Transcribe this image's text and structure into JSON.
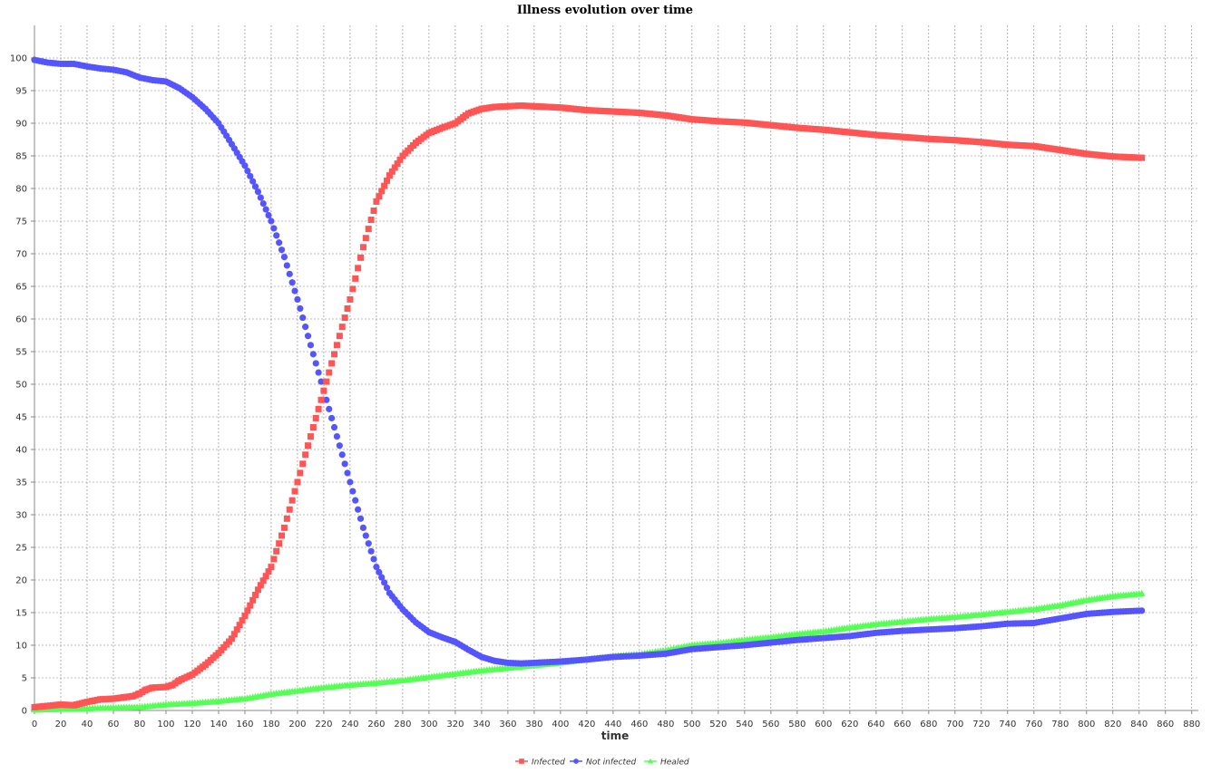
{
  "chart_data": {
    "type": "scatter",
    "title": "Illness evolution over time",
    "xlabel": "time",
    "ylabel": "",
    "xlim": [
      0,
      885
    ],
    "ylim": [
      0,
      105
    ],
    "x_ticks": [
      0,
      20,
      40,
      60,
      80,
      100,
      120,
      140,
      160,
      180,
      200,
      220,
      240,
      260,
      280,
      300,
      320,
      340,
      360,
      380,
      400,
      420,
      440,
      460,
      480,
      500,
      520,
      540,
      560,
      580,
      600,
      620,
      640,
      660,
      680,
      700,
      720,
      740,
      760,
      780,
      800,
      820,
      840,
      860,
      880
    ],
    "y_ticks": [
      0,
      5,
      10,
      15,
      20,
      25,
      30,
      35,
      40,
      45,
      50,
      55,
      60,
      65,
      70,
      75,
      80,
      85,
      90,
      95,
      100
    ],
    "grid": true,
    "legend_position": "bottom",
    "series": [
      {
        "name": "Infected",
        "color": "#ff5555",
        "marker": "square",
        "points": [
          [
            0,
            0.5
          ],
          [
            20,
            0.9
          ],
          [
            30,
            0.8
          ],
          [
            40,
            1.3
          ],
          [
            50,
            1.7
          ],
          [
            60,
            1.8
          ],
          [
            75,
            2.2
          ],
          [
            80,
            2.6
          ],
          [
            85,
            3.2
          ],
          [
            90,
            3.5
          ],
          [
            100,
            3.6
          ],
          [
            105,
            3.9
          ],
          [
            110,
            4.6
          ],
          [
            120,
            5.5
          ],
          [
            130,
            7
          ],
          [
            140,
            8.8
          ],
          [
            150,
            11
          ],
          [
            160,
            14.5
          ],
          [
            170,
            18.5
          ],
          [
            180,
            22
          ],
          [
            190,
            28
          ],
          [
            200,
            35
          ],
          [
            210,
            42
          ],
          [
            220,
            49
          ],
          [
            230,
            56
          ],
          [
            240,
            63
          ],
          [
            250,
            71
          ],
          [
            260,
            78
          ],
          [
            270,
            82
          ],
          [
            280,
            85
          ],
          [
            290,
            87
          ],
          [
            300,
            88.5
          ],
          [
            310,
            89.3
          ],
          [
            320,
            90
          ],
          [
            330,
            91.5
          ],
          [
            340,
            92.2
          ],
          [
            350,
            92.5
          ],
          [
            360,
            92.6
          ],
          [
            370,
            92.7
          ],
          [
            380,
            92.6
          ],
          [
            400,
            92.4
          ],
          [
            420,
            92
          ],
          [
            440,
            91.8
          ],
          [
            460,
            91.6
          ],
          [
            480,
            91.2
          ],
          [
            500,
            90.6
          ],
          [
            520,
            90.3
          ],
          [
            540,
            90.1
          ],
          [
            560,
            89.7
          ],
          [
            580,
            89.3
          ],
          [
            600,
            89
          ],
          [
            620,
            88.6
          ],
          [
            640,
            88.2
          ],
          [
            660,
            87.9
          ],
          [
            680,
            87.6
          ],
          [
            700,
            87.4
          ],
          [
            720,
            87.1
          ],
          [
            740,
            86.7
          ],
          [
            760,
            86.5
          ],
          [
            780,
            85.9
          ],
          [
            800,
            85.3
          ],
          [
            820,
            84.9
          ],
          [
            842,
            84.7
          ]
        ]
      },
      {
        "name": "Not infected",
        "color": "#5555ff",
        "marker": "circle",
        "points": [
          [
            0,
            99.7
          ],
          [
            10,
            99.3
          ],
          [
            20,
            99.1
          ],
          [
            30,
            99.1
          ],
          [
            40,
            98.7
          ],
          [
            50,
            98.4
          ],
          [
            60,
            98.2
          ],
          [
            70,
            97.8
          ],
          [
            80,
            97
          ],
          [
            90,
            96.6
          ],
          [
            100,
            96.4
          ],
          [
            110,
            95.4
          ],
          [
            120,
            94
          ],
          [
            130,
            92.2
          ],
          [
            140,
            90
          ],
          [
            150,
            86.8
          ],
          [
            160,
            83.5
          ],
          [
            170,
            79.5
          ],
          [
            180,
            75
          ],
          [
            190,
            69.5
          ],
          [
            200,
            63
          ],
          [
            210,
            56
          ],
          [
            220,
            49
          ],
          [
            230,
            42
          ],
          [
            240,
            35
          ],
          [
            250,
            28
          ],
          [
            260,
            22
          ],
          [
            270,
            18
          ],
          [
            280,
            15.5
          ],
          [
            290,
            13.5
          ],
          [
            300,
            12
          ],
          [
            310,
            11.2
          ],
          [
            320,
            10.5
          ],
          [
            330,
            9.3
          ],
          [
            340,
            8.2
          ],
          [
            350,
            7.6
          ],
          [
            360,
            7.3
          ],
          [
            370,
            7.2
          ],
          [
            380,
            7.3
          ],
          [
            400,
            7.5
          ],
          [
            420,
            7.8
          ],
          [
            440,
            8.2
          ],
          [
            460,
            8.4
          ],
          [
            480,
            8.7
          ],
          [
            500,
            9.4
          ],
          [
            520,
            9.7
          ],
          [
            540,
            10
          ],
          [
            560,
            10.4
          ],
          [
            580,
            10.8
          ],
          [
            600,
            11.1
          ],
          [
            620,
            11.4
          ],
          [
            640,
            11.9
          ],
          [
            660,
            12.2
          ],
          [
            680,
            12.4
          ],
          [
            700,
            12.6
          ],
          [
            720,
            12.9
          ],
          [
            740,
            13.3
          ],
          [
            760,
            13.4
          ],
          [
            780,
            14.1
          ],
          [
            800,
            14.8
          ],
          [
            820,
            15.1
          ],
          [
            842,
            15.3
          ]
        ]
      },
      {
        "name": "Healed",
        "color": "#55ff55",
        "marker": "triangle",
        "points": [
          [
            0,
            0.1
          ],
          [
            40,
            0.3
          ],
          [
            80,
            0.5
          ],
          [
            100,
            0.9
          ],
          [
            120,
            1.1
          ],
          [
            140,
            1.4
          ],
          [
            160,
            1.8
          ],
          [
            180,
            2.5
          ],
          [
            200,
            3
          ],
          [
            220,
            3.5
          ],
          [
            240,
            3.9
          ],
          [
            260,
            4.2
          ],
          [
            280,
            4.6
          ],
          [
            300,
            5.1
          ],
          [
            320,
            5.6
          ],
          [
            340,
            6.1
          ],
          [
            360,
            6.5
          ],
          [
            380,
            6.9
          ],
          [
            400,
            7.3
          ],
          [
            420,
            7.8
          ],
          [
            440,
            8.3
          ],
          [
            460,
            8.6
          ],
          [
            480,
            9.2
          ],
          [
            500,
            10
          ],
          [
            520,
            10.3
          ],
          [
            540,
            10.8
          ],
          [
            560,
            11.2
          ],
          [
            580,
            11.7
          ],
          [
            600,
            12.1
          ],
          [
            620,
            12.7
          ],
          [
            640,
            13.2
          ],
          [
            660,
            13.6
          ],
          [
            680,
            14
          ],
          [
            700,
            14.3
          ],
          [
            720,
            14.7
          ],
          [
            740,
            15.1
          ],
          [
            760,
            15.5
          ],
          [
            780,
            16.1
          ],
          [
            800,
            16.9
          ],
          [
            820,
            17.5
          ],
          [
            842,
            17.9
          ]
        ]
      }
    ]
  }
}
